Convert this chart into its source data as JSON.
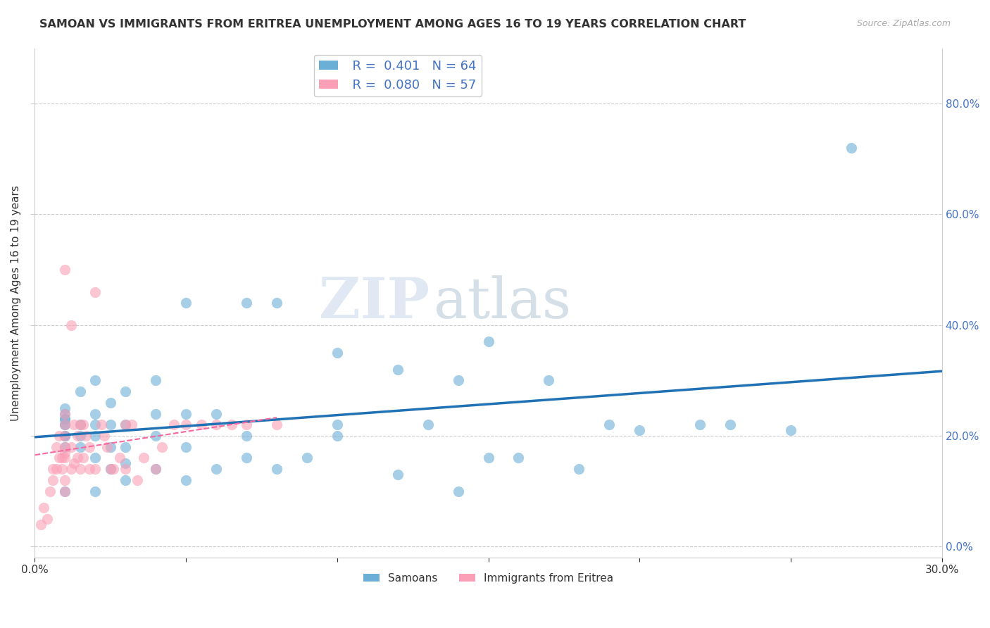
{
  "title": "SAMOAN VS IMMIGRANTS FROM ERITREA UNEMPLOYMENT AMONG AGES 16 TO 19 YEARS CORRELATION CHART",
  "source": "Source: ZipAtlas.com",
  "ylabel": "Unemployment Among Ages 16 to 19 years",
  "legend_labels": [
    "Samoans",
    "Immigrants from Eritrea"
  ],
  "r_values": [
    0.401,
    0.08
  ],
  "n_values": [
    64,
    57
  ],
  "blue_color": "#6baed6",
  "pink_color": "#fa9fb5",
  "blue_line_color": "#2171b5",
  "pink_line_color": "#f768a1",
  "watermark_zip": "ZIP",
  "watermark_atlas": "atlas",
  "xlim": [
    0.0,
    0.3
  ],
  "ylim": [
    -0.02,
    0.9
  ],
  "right_yticks": [
    0.0,
    0.2,
    0.4,
    0.6,
    0.8
  ],
  "right_yticklabels": [
    "0.0%",
    "20.0%",
    "40.0%",
    "60.0%",
    "80.0%"
  ],
  "xticks": [
    0.0,
    0.05,
    0.1,
    0.15,
    0.2,
    0.25,
    0.3
  ],
  "xticklabels": [
    "0.0%",
    "",
    "",
    "",
    "",
    "",
    "30.0%"
  ],
  "blue_scatter_x": [
    0.01,
    0.01,
    0.01,
    0.01,
    0.01,
    0.01,
    0.01,
    0.01,
    0.01,
    0.01,
    0.015,
    0.015,
    0.015,
    0.015,
    0.02,
    0.02,
    0.02,
    0.02,
    0.02,
    0.02,
    0.025,
    0.025,
    0.025,
    0.025,
    0.03,
    0.03,
    0.03,
    0.03,
    0.03,
    0.04,
    0.04,
    0.04,
    0.04,
    0.05,
    0.05,
    0.05,
    0.05,
    0.06,
    0.06,
    0.07,
    0.07,
    0.07,
    0.08,
    0.08,
    0.09,
    0.1,
    0.1,
    0.1,
    0.12,
    0.12,
    0.13,
    0.14,
    0.14,
    0.15,
    0.15,
    0.16,
    0.17,
    0.18,
    0.19,
    0.2,
    0.22,
    0.23,
    0.25,
    0.27
  ],
  "blue_scatter_y": [
    0.18,
    0.2,
    0.2,
    0.22,
    0.22,
    0.23,
    0.23,
    0.24,
    0.25,
    0.1,
    0.18,
    0.2,
    0.22,
    0.28,
    0.1,
    0.16,
    0.2,
    0.22,
    0.24,
    0.3,
    0.14,
    0.18,
    0.22,
    0.26,
    0.12,
    0.15,
    0.18,
    0.22,
    0.28,
    0.14,
    0.2,
    0.24,
    0.3,
    0.12,
    0.18,
    0.24,
    0.44,
    0.14,
    0.24,
    0.16,
    0.2,
    0.44,
    0.14,
    0.44,
    0.16,
    0.22,
    0.35,
    0.2,
    0.13,
    0.32,
    0.22,
    0.1,
    0.3,
    0.16,
    0.37,
    0.16,
    0.3,
    0.14,
    0.22,
    0.21,
    0.22,
    0.22,
    0.21,
    0.72
  ],
  "pink_scatter_x": [
    0.002,
    0.003,
    0.004,
    0.005,
    0.006,
    0.006,
    0.007,
    0.007,
    0.008,
    0.008,
    0.009,
    0.009,
    0.01,
    0.01,
    0.01,
    0.01,
    0.01,
    0.01,
    0.01,
    0.01,
    0.01,
    0.012,
    0.012,
    0.012,
    0.013,
    0.013,
    0.014,
    0.014,
    0.015,
    0.015,
    0.016,
    0.016,
    0.017,
    0.018,
    0.018,
    0.02,
    0.02,
    0.022,
    0.023,
    0.024,
    0.025,
    0.026,
    0.028,
    0.03,
    0.03,
    0.032,
    0.034,
    0.036,
    0.04,
    0.042,
    0.046,
    0.05,
    0.055,
    0.06,
    0.065,
    0.07,
    0.08
  ],
  "pink_scatter_y": [
    0.04,
    0.07,
    0.05,
    0.1,
    0.12,
    0.14,
    0.14,
    0.18,
    0.16,
    0.2,
    0.14,
    0.16,
    0.1,
    0.12,
    0.16,
    0.17,
    0.18,
    0.2,
    0.22,
    0.24,
    0.5,
    0.14,
    0.18,
    0.4,
    0.15,
    0.22,
    0.16,
    0.2,
    0.14,
    0.22,
    0.16,
    0.22,
    0.2,
    0.14,
    0.18,
    0.14,
    0.46,
    0.22,
    0.2,
    0.18,
    0.14,
    0.14,
    0.16,
    0.14,
    0.22,
    0.22,
    0.12,
    0.16,
    0.14,
    0.18,
    0.22,
    0.22,
    0.22,
    0.22,
    0.22,
    0.22,
    0.22
  ]
}
